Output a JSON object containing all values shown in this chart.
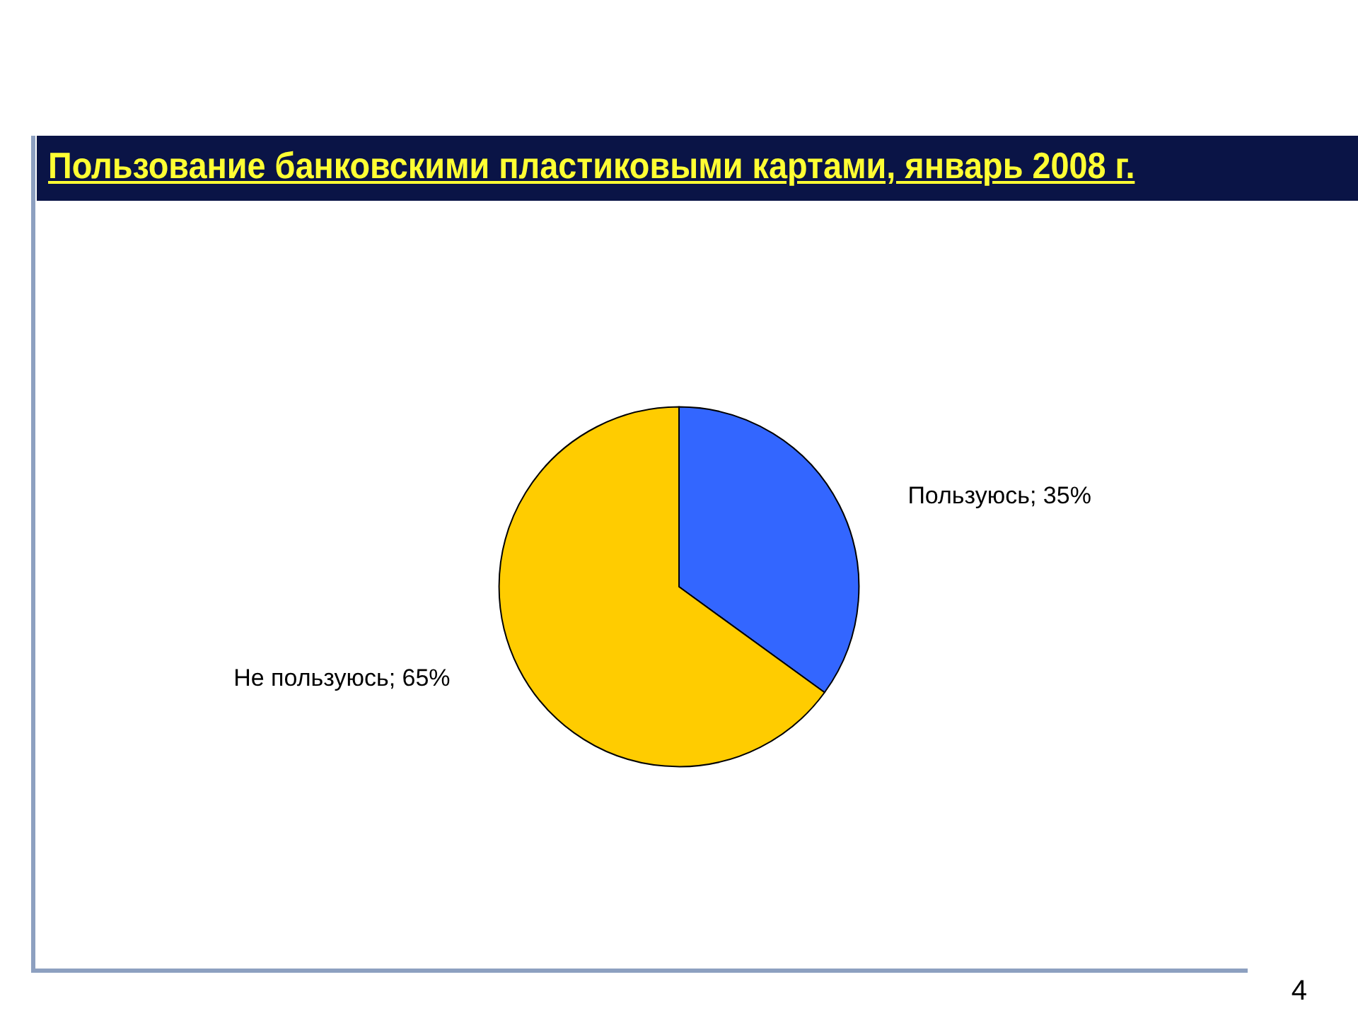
{
  "chart_data": {
    "type": "pie",
    "title": "Пользование банковскими пластиковыми картами, январь 2008 г.",
    "categories": [
      "Пользуюсь",
      "Не пользуюсь"
    ],
    "values": [
      35,
      65
    ],
    "colors": [
      "#3366ff",
      "#ffcc00"
    ],
    "value_labels": [
      "35%",
      "65%"
    ],
    "legend": false,
    "annotations": [
      "4"
    ]
  }
}
